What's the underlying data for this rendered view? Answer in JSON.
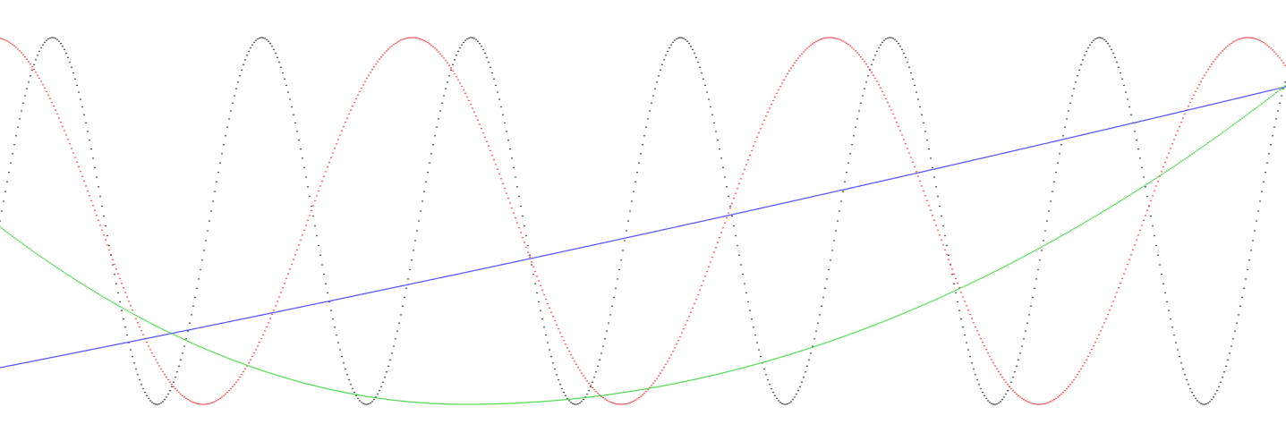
{
  "chart_data": {
    "type": "line",
    "title": "",
    "xlabel": "",
    "ylabel": "",
    "grid": false,
    "xlim": [
      0,
      14.37
    ],
    "ylim": [
      -1,
      1
    ],
    "style": "dotted",
    "x": {
      "start": 0,
      "end": 14.37,
      "step": 0.02
    },
    "series": [
      {
        "key": "black",
        "color": "#000000",
        "formula": "sin",
        "amplitude": 1,
        "period": 2.34,
        "phase_deg": 0,
        "offset": 0
      },
      {
        "key": "red",
        "color": "#ff0000",
        "formula": "sin",
        "amplitude": 1,
        "period": 4.67,
        "phase_deg": 95,
        "offset": 0
      },
      {
        "key": "blue",
        "color": "#0000ff",
        "formula": "poly",
        "coefficients": [
          -0.8,
          0.096,
          0.00074
        ],
        "comment_free": true
      },
      {
        "key": "green",
        "color": "#00cc00",
        "formula": "cos_bowl",
        "center": 5.2,
        "curvature_left": 0.0358,
        "curvature_right": 0.0207,
        "start_value": -0.23,
        "min": -1
      }
    ]
  }
}
